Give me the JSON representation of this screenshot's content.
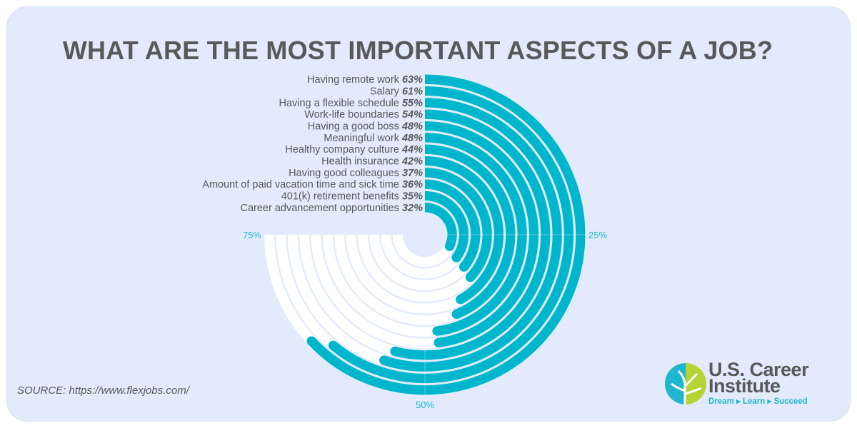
{
  "title": "WHAT ARE THE MOST IMPORTANT ASPECTS OF A JOB?",
  "source": "SOURCE: https://www.flexjobs.com/",
  "logo": {
    "line1": "U.S. Career",
    "line2": "Institute",
    "tagline": "Dream ▸ Learn ▸ Succeed",
    "colors": [
      "#1fb6cf",
      "#b5d334"
    ]
  },
  "colors": {
    "bar": "#00b6cc",
    "track": "#ffffff",
    "background": "#e2eafc",
    "text": "#58595b",
    "axis": "#1fb6cf"
  },
  "chart_data": {
    "type": "radial-bar",
    "title": "WHAT ARE THE MOST IMPORTANT ASPECTS OF A JOB?",
    "categories": [
      "Having remote work",
      "Salary",
      "Having a flexible schedule",
      "Work-life boundaries",
      "Having a good boss",
      "Meaningful work",
      "Healthy company culture",
      "Health insurance",
      "Having good colleagues",
      "Amount of paid vacation time and sick time",
      "401(k) retirement benefits",
      "Career advancement opportunities"
    ],
    "values": [
      63,
      61,
      55,
      54,
      48,
      48,
      44,
      42,
      37,
      36,
      35,
      32
    ],
    "value_labels": [
      "63%",
      "61%",
      "55%",
      "54%",
      "48%",
      "48%",
      "44%",
      "42%",
      "37%",
      "36%",
      "35%",
      "32%"
    ],
    "axis_ticks": [
      "25%",
      "50%",
      "75%"
    ],
    "scale_max": 100
  }
}
